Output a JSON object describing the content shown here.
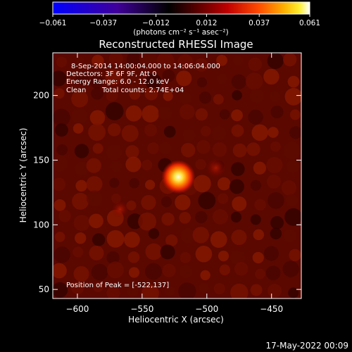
{
  "chart_data": {
    "type": "heatmap",
    "title": "Reconstructed RHESSI Image",
    "xlabel": "Heliocentric X (arcsec)",
    "ylabel": "Heliocentric Y (arcsec)",
    "xlim": [
      -619,
      -427
    ],
    "ylim": [
      43,
      233
    ],
    "x_ticks": [
      -600,
      -550,
      -500,
      -450
    ],
    "y_ticks": [
      50,
      100,
      150,
      200
    ],
    "x_tick_labels": [
      "−600",
      "−550",
      "−500",
      "−450"
    ],
    "y_tick_labels": [
      "50",
      "100",
      "150",
      "200"
    ],
    "colorbar": {
      "range": [
        -0.061,
        0.061
      ],
      "ticks": [
        -0.061,
        -0.037,
        -0.012,
        0.012,
        0.037,
        0.061
      ],
      "tick_labels": [
        "−0.061",
        "−0.037",
        "−0.012",
        "0.012",
        "0.037",
        "0.061"
      ],
      "units": "(photons cm⁻² s⁻¹ asec⁻²)",
      "colors": [
        "#0000ff",
        "#3a00a0",
        "#000000",
        "#500000",
        "#b00000",
        "#ff3000",
        "#ff9000",
        "#ffe000",
        "#ffffff"
      ]
    },
    "peak": {
      "x": -522,
      "y": 137,
      "value": 0.061
    },
    "secondary_sources": [
      {
        "x": -493,
        "y": 144,
        "value": 0.012
      },
      {
        "x": -567,
        "y": 112,
        "value": 0.012
      }
    ],
    "background_level": 0.006
  },
  "annotations": {
    "time_range": "8-Sep-2014 14:00:04.000 to 14:06:04.000",
    "detectors": "Detectors: 3F 6F 9F, Att 0",
    "energy": "Energy Range: 6.0 - 12.0 keV",
    "method": "Clean",
    "counts": "Total counts: 2.74E+04",
    "peak_position": "Position of Peak = [-522,137]"
  },
  "footer": {
    "timestamp": "17-May-2022 00:09"
  }
}
